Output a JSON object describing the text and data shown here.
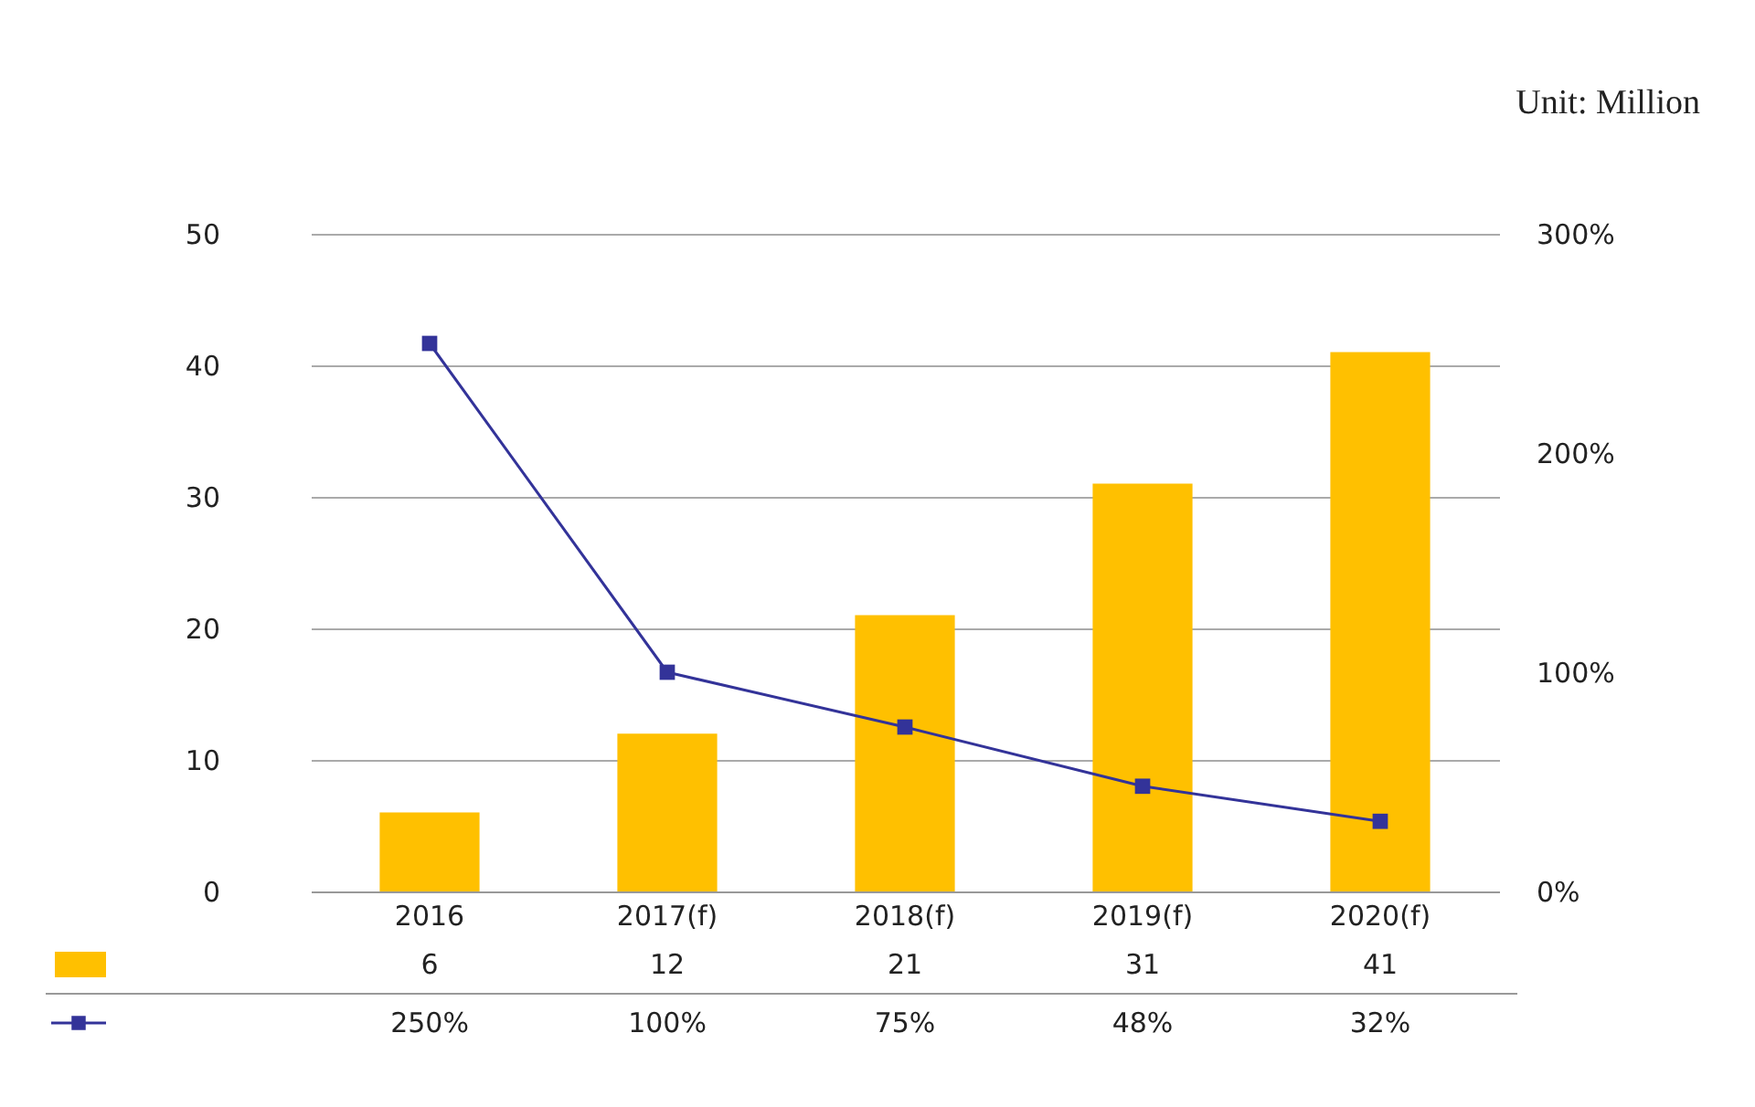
{
  "chart_data": {
    "type": "bar",
    "annotations": [
      "Unit: Million"
    ],
    "categories": [
      "2016",
      "2017(f)",
      "2018(f)",
      "2019(f)",
      "2020(f)"
    ],
    "series": [
      {
        "type": "bar",
        "color": "#ffc000",
        "values": [
          6,
          12,
          21,
          31,
          41
        ],
        "value_labels": [
          "6",
          "12",
          "21",
          "31",
          "41"
        ]
      },
      {
        "type": "line",
        "axis": "y2",
        "color": "#333399",
        "marker": "square",
        "values": [
          250,
          100,
          75,
          48,
          32
        ],
        "value_labels": [
          "250%",
          "100%",
          "75%",
          "48%",
          "32%"
        ]
      }
    ],
    "ylim": [
      0,
      50
    ],
    "yticks": [
      0,
      10,
      20,
      30,
      40,
      50
    ],
    "y2lim": [
      0,
      300
    ],
    "y2ticks": [
      {
        "value": 0,
        "label": "0%"
      },
      {
        "value": 100,
        "label": "100%"
      },
      {
        "value": 200,
        "label": "200%"
      },
      {
        "value": 300,
        "label": "300%"
      }
    ],
    "grid": "y",
    "legend": false
  }
}
